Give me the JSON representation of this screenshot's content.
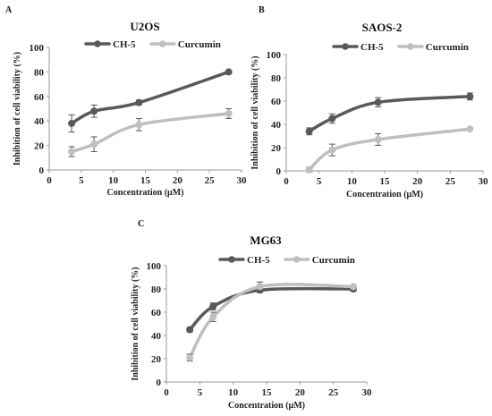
{
  "chart_data": [
    {
      "panel": "A",
      "type": "line",
      "title": "U2OS",
      "xlabel": "Concentration (μM)",
      "ylabel": "Inhibition of cell viability (%)",
      "xlim": [
        0,
        30
      ],
      "ylim": [
        0,
        100
      ],
      "xticks": [
        0,
        5,
        10,
        15,
        20,
        25,
        30
      ],
      "yticks": [
        0,
        20,
        40,
        60,
        80,
        100
      ],
      "legend_position": "top",
      "grid": false,
      "series": [
        {
          "name": "CH-5",
          "color": "#595959",
          "x": [
            3.5,
            7,
            14,
            28
          ],
          "y": [
            38,
            48,
            55,
            80
          ],
          "error": [
            7,
            5,
            2,
            1
          ]
        },
        {
          "name": "Curcumin",
          "color": "#bfbfbf",
          "x": [
            3.5,
            7,
            14,
            28
          ],
          "y": [
            15,
            21,
            37,
            46
          ],
          "error": [
            4,
            6,
            5,
            4
          ]
        }
      ]
    },
    {
      "panel": "B",
      "type": "line",
      "title": "SAOS-2",
      "xlabel": "Concentration (μM)",
      "ylabel": "Inhibition of cell viability (%)",
      "xlim": [
        0,
        30
      ],
      "ylim": [
        0,
        100
      ],
      "xticks": [
        0,
        5,
        10,
        15,
        20,
        25,
        30
      ],
      "yticks": [
        0,
        20,
        40,
        60,
        80,
        100
      ],
      "legend_position": "top",
      "grid": false,
      "series": [
        {
          "name": "CH-5",
          "color": "#595959",
          "x": [
            3.5,
            7,
            14,
            28
          ],
          "y": [
            34,
            45,
            59,
            64
          ],
          "error": [
            3,
            4,
            4,
            3
          ]
        },
        {
          "name": "Curcumin",
          "color": "#bfbfbf",
          "x": [
            3.5,
            7,
            14,
            28
          ],
          "y": [
            1,
            18,
            27,
            36
          ],
          "error": [
            2,
            5,
            5,
            1
          ]
        }
      ]
    },
    {
      "panel": "C",
      "type": "line",
      "title": "MG63",
      "xlabel": "Concentration (μM)",
      "ylabel": "Inhibition of cell viability (%)",
      "xlim": [
        0,
        30
      ],
      "ylim": [
        0,
        100
      ],
      "xticks": [
        0,
        5,
        10,
        15,
        20,
        25,
        30
      ],
      "yticks": [
        0,
        20,
        40,
        60,
        80,
        100
      ],
      "legend_position": "top",
      "grid": false,
      "series": [
        {
          "name": "CH-5",
          "color": "#595959",
          "x": [
            3.5,
            7,
            14,
            28
          ],
          "y": [
            45,
            65,
            79,
            80
          ],
          "error": [
            2,
            3,
            2,
            2
          ]
        },
        {
          "name": "Curcumin",
          "color": "#bfbfbf",
          "x": [
            3.5,
            7,
            14,
            28
          ],
          "y": [
            21,
            56,
            82,
            82
          ],
          "error": [
            3,
            4,
            4,
            1
          ]
        }
      ]
    }
  ]
}
